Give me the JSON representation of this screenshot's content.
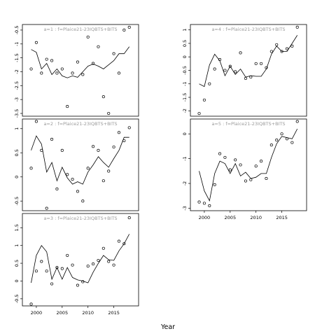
{
  "chart_data": {
    "type": "multi-panel line + scatter",
    "xlabel": "Year",
    "x": [
      1999,
      2000,
      2001,
      2002,
      2003,
      2004,
      2005,
      2006,
      2007,
      2008,
      2009,
      2010,
      2011,
      2012,
      2013,
      2014,
      2015,
      2016,
      2017,
      2018
    ],
    "panels": [
      {
        "title": "a=1 : f=Plaice21-23IQBTS+BITS",
        "ylim": [
          -3.6,
          -0.3
        ],
        "yticks": [
          -3.5,
          -3.0,
          -2.5,
          -2.0,
          -1.5,
          -1.0,
          -0.5
        ],
        "xticks": [],
        "fitted": [
          -1.2,
          -1.3,
          -1.9,
          -1.7,
          -2.1,
          -1.9,
          -2.15,
          -2.22,
          -2.15,
          -2.2,
          -2.0,
          -1.8,
          -1.72,
          -1.8,
          -1.9,
          -1.75,
          -1.6,
          -1.35,
          -1.35,
          -1.1
        ],
        "observed": [
          -1.9,
          -0.95,
          -2.05,
          -1.55,
          -1.6,
          -2.05,
          -1.9,
          -3.25,
          -2.05,
          -1.65,
          -2.1,
          -0.75,
          -1.7,
          -1.1,
          -2.9,
          -3.5,
          -1.35,
          -2.05,
          -0.5,
          -0.4
        ]
      },
      {
        "title": "a=2 : f=Plaice21-23IQBTS+BITS",
        "ylim": [
          -0.7,
          1.2
        ],
        "yticks": [
          -0.5,
          0.0,
          0.5,
          1.0
        ],
        "xticks": [],
        "fitted": [
          0.55,
          0.85,
          0.68,
          0.1,
          0.3,
          -0.08,
          0.2,
          -0.02,
          -0.15,
          -0.1,
          -0.15,
          0.1,
          0.25,
          0.42,
          0.3,
          0.2,
          0.38,
          0.55,
          0.82,
          0.82
        ],
        "observed": [
          0.18,
          1.15,
          0.55,
          -0.65,
          0.78,
          -0.25,
          0.55,
          0.05,
          -0.05,
          -0.3,
          -0.5,
          0.18,
          0.63,
          0.55,
          -0.08,
          0.12,
          0.62,
          0.92,
          0.75,
          1.02
        ]
      },
      {
        "title": "a=3 : f=Plaice21-23IQBTS+BITS",
        "ylim": [
          -0.7,
          1.9
        ],
        "yticks": [
          -0.5,
          0.0,
          0.5,
          1.0,
          1.5
        ],
        "xticks": [
          2000,
          2005,
          2010,
          2015
        ],
        "fitted": [
          -0.05,
          0.72,
          1.0,
          0.82,
          0.05,
          0.38,
          0.05,
          0.38,
          0.1,
          0.03,
          0.0,
          -0.05,
          0.25,
          0.5,
          0.72,
          0.6,
          0.58,
          0.85,
          1.05,
          1.32
        ],
        "observed": [
          -0.65,
          0.28,
          0.55,
          0.28,
          -0.08,
          0.38,
          0.35,
          0.72,
          0.45,
          -0.12,
          -0.02,
          0.42,
          0.48,
          0.58,
          0.92,
          0.55,
          0.45,
          1.12,
          1.05,
          1.78
        ]
      },
      {
        "title": "a=4 : f=Plaice21-23IQBTS+BITS",
        "ylim": [
          -2.2,
          1.2
        ],
        "yticks": [
          -2.0,
          -1.5,
          -1.0,
          -0.5,
          0.0,
          0.5,
          1.0
        ],
        "xticks": [],
        "fitted": [
          -1.0,
          -1.1,
          -0.3,
          0.1,
          -0.15,
          -0.7,
          -0.35,
          -0.65,
          -0.45,
          -0.75,
          -0.7,
          -0.72,
          -0.72,
          -0.45,
          0.1,
          0.4,
          0.2,
          0.2,
          0.5,
          0.8
        ],
        "observed": [
          -2.1,
          -1.6,
          -1.0,
          -0.45,
          -0.1,
          -0.5,
          -0.35,
          -0.55,
          0.15,
          -0.8,
          -0.75,
          -0.25,
          -0.25,
          -0.4,
          0.2,
          0.45,
          0.2,
          0.3,
          0.4,
          1.1
        ]
      },
      {
        "title": "a=5 : f=Plaice21-23IQBTS+BITS",
        "ylim": [
          -3.1,
          0.6
        ],
        "yticks": [
          -3.0,
          -2.0,
          -1.0,
          0.0
        ],
        "xticks": [
          2000,
          2005,
          2010,
          2015
        ],
        "fitted": [
          -1.5,
          -2.3,
          -2.7,
          -1.6,
          -1.1,
          -1.2,
          -1.6,
          -1.2,
          -1.7,
          -1.55,
          -1.8,
          -1.75,
          -1.6,
          -1.6,
          -0.95,
          -0.4,
          -0.1,
          -0.15,
          -0.2,
          0.2
        ],
        "observed": [
          -2.75,
          -2.8,
          -2.9,
          -2.05,
          -0.8,
          -0.95,
          -1.45,
          -1.05,
          -1.25,
          -1.9,
          -1.85,
          -1.3,
          -1.1,
          -1.8,
          -0.45,
          -0.25,
          0.0,
          -0.2,
          -0.35,
          0.5
        ]
      }
    ]
  }
}
